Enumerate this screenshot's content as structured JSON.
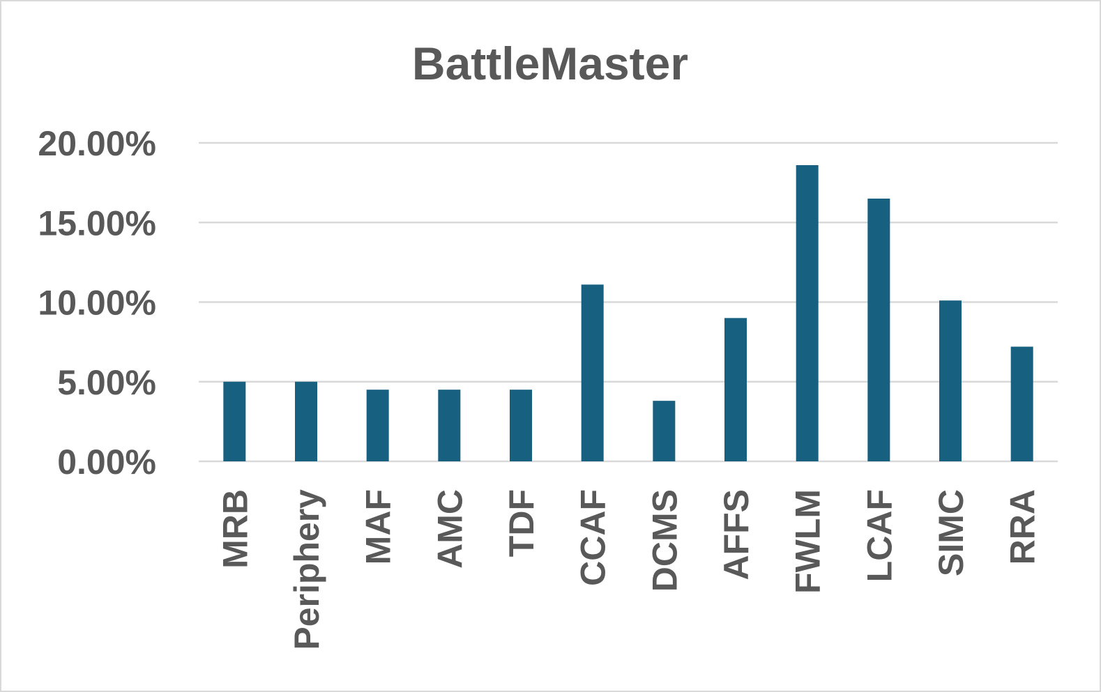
{
  "chart_data": {
    "type": "bar",
    "title": "BattleMaster",
    "xlabel": "",
    "ylabel": "",
    "categories": [
      "MRB",
      "Periphery",
      "MAF",
      "AMC",
      "TDF",
      "CCAF",
      "DCMS",
      "AFFS",
      "FWLM",
      "LCAF",
      "SIMC",
      "RRA"
    ],
    "values": [
      5.0,
      5.0,
      4.5,
      4.5,
      4.5,
      11.1,
      3.8,
      9.0,
      18.6,
      16.5,
      10.1,
      7.2
    ],
    "ylim": [
      0,
      20
    ],
    "yticks": [
      "0.00%",
      "5.00%",
      "10.00%",
      "15.00%",
      "20.00%"
    ],
    "ytick_values": [
      0,
      5,
      10,
      15,
      20
    ],
    "grid": true,
    "legend": "none",
    "bar_color": "#17607f",
    "grid_color": "#d9d9d9",
    "text_color": "#595959"
  }
}
